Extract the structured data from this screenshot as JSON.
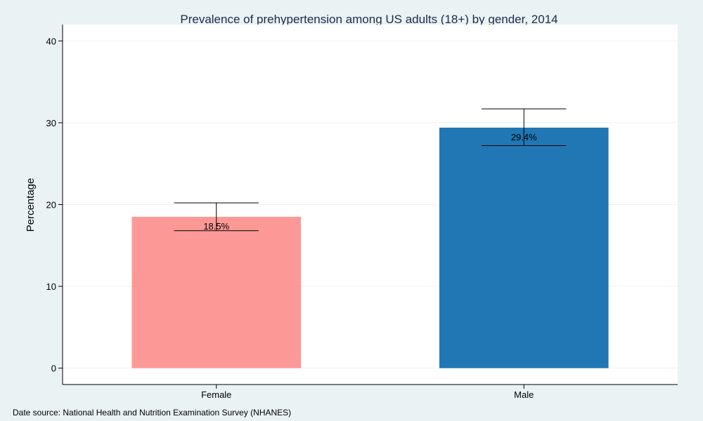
{
  "chart_data": {
    "type": "bar",
    "title": "Prevalence of prehypertension among US adults (18+) by gender, 2014",
    "xlabel": "",
    "ylabel": "Percentage",
    "categories": [
      "Female",
      "Male"
    ],
    "values": [
      18.5,
      29.4
    ],
    "data_labels": [
      "18.5%",
      "29.4%"
    ],
    "error_bars": [
      {
        "low": 16.8,
        "high": 20.2
      },
      {
        "low": 27.2,
        "high": 31.7
      }
    ],
    "colors": [
      "#fc9997",
      "#2077b4"
    ],
    "yticks": [
      0,
      10,
      20,
      30,
      40
    ],
    "ylim": [
      -2,
      42
    ],
    "grid": true,
    "legend": "none"
  },
  "source_note": "Date source: National Health and Nutrition Examination Survey (NHANES)"
}
